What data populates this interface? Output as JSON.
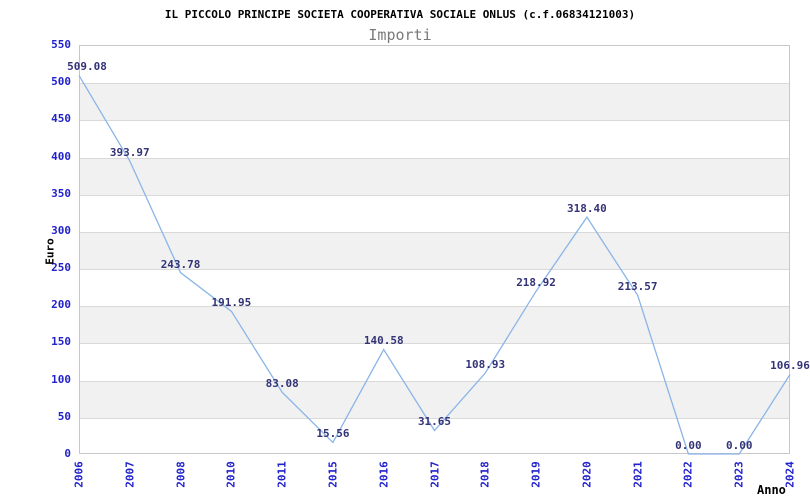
{
  "header": {
    "title": "IL PICCOLO PRINCIPE SOCIETA COOPERATIVA SOCIALE ONLUS (c.f.06834121003)",
    "subtitle": "Importi"
  },
  "chart_data": {
    "type": "line",
    "title": "IL PICCOLO PRINCIPE SOCIETA COOPERATIVA SOCIALE ONLUS (c.f.06834121003)",
    "subtitle": "Importi",
    "xlabel": "Anno",
    "ylabel": "Euro",
    "ylim": [
      0,
      550
    ],
    "ytick_step": 50,
    "yticks": [
      0,
      50,
      100,
      150,
      200,
      250,
      300,
      350,
      400,
      450,
      500,
      550
    ],
    "categories": [
      "2006",
      "2007",
      "2008",
      "2010",
      "2011",
      "2015",
      "2016",
      "2017",
      "2018",
      "2019",
      "2020",
      "2021",
      "2022",
      "2023",
      "2024"
    ],
    "values": [
      509.08,
      393.97,
      243.78,
      191.95,
      83.08,
      15.56,
      140.58,
      31.65,
      108.93,
      218.92,
      318.4,
      213.57,
      0.0,
      0.0,
      106.96
    ],
    "point_labels": [
      "509.08",
      "393.97",
      "243.78",
      "191.95",
      "83.08",
      "15.56",
      "140.58",
      "31.65",
      "108.93",
      "218.92",
      "318.40",
      "213.57",
      "0.00",
      "0.00",
      "106.96"
    ],
    "grid": "horizontal",
    "bands": "alternating 50-unit white/gray stripes starting white at 0",
    "legend": "none"
  },
  "colors": {
    "title": "#000000",
    "subtitle": "#7a7a7a",
    "line": "#8ab5e8",
    "point_label": "#333377",
    "axis_tick_label": "#2222cc",
    "axis_title": "#000000",
    "band_gray": "#f1f1f1",
    "gridline": "#d9d9d9",
    "plot_border": "#c8c8c8",
    "background": "#ffffff"
  }
}
